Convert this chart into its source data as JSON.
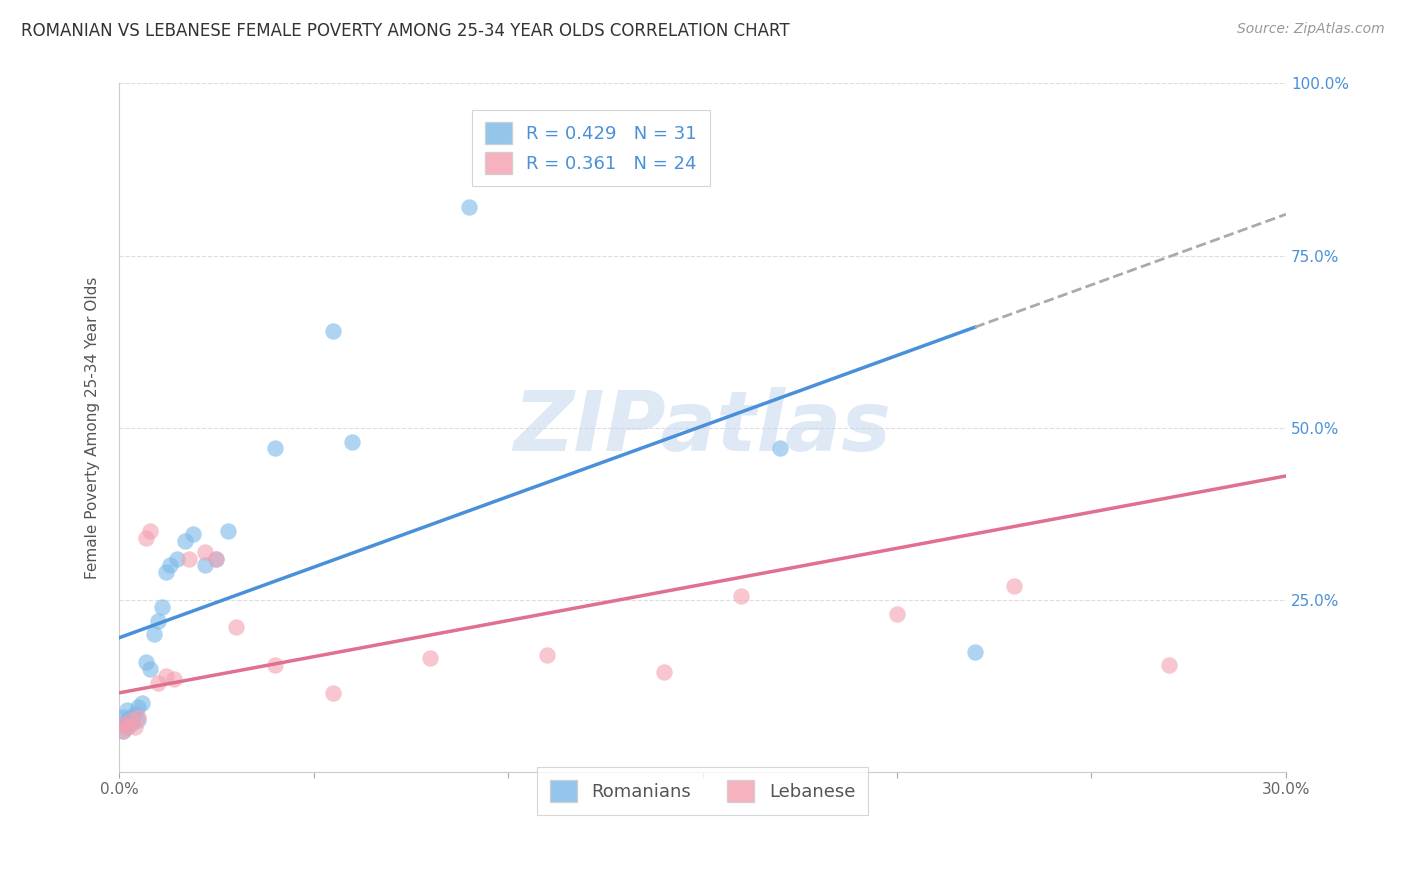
{
  "title": "ROMANIAN VS LEBANESE FEMALE POVERTY AMONG 25-34 YEAR OLDS CORRELATION CHART",
  "source": "Source: ZipAtlas.com",
  "ylabel": "Female Poverty Among 25-34 Year Olds",
  "xlim": [
    0.0,
    0.3
  ],
  "ylim": [
    0.0,
    1.0
  ],
  "xticks": [
    0.0,
    0.05,
    0.1,
    0.15,
    0.2,
    0.25,
    0.3
  ],
  "xticklabels": [
    "0.0%",
    "",
    "",
    "",
    "",
    "",
    "30.0%"
  ],
  "yticks": [
    0.0,
    0.25,
    0.5,
    0.75,
    1.0
  ],
  "right_yticklabels": [
    "",
    "25.0%",
    "50.0%",
    "75.0%",
    "100.0%"
  ],
  "romanian_R": 0.429,
  "romanian_N": 31,
  "lebanese_R": 0.361,
  "lebanese_N": 24,
  "romanian_color": "#7ab8e8",
  "lebanese_color": "#f4a0b0",
  "ro_line_color": "#4a90d9",
  "lb_line_color": "#e07090",
  "dash_color": "#aaaaaa",
  "ro_line_solid_end": 0.22,
  "ro_line_intercept": 0.195,
  "ro_line_slope": 2.05,
  "lb_line_intercept": 0.115,
  "lb_line_slope": 1.05,
  "romanian_x": [
    0.001,
    0.001,
    0.001,
    0.002,
    0.002,
    0.002,
    0.003,
    0.003,
    0.004,
    0.005,
    0.005,
    0.006,
    0.007,
    0.008,
    0.009,
    0.01,
    0.011,
    0.012,
    0.013,
    0.015,
    0.017,
    0.019,
    0.022,
    0.025,
    0.028,
    0.04,
    0.055,
    0.06,
    0.09,
    0.17,
    0.22
  ],
  "romanian_y": [
    0.06,
    0.07,
    0.08,
    0.065,
    0.075,
    0.09,
    0.07,
    0.08,
    0.085,
    0.075,
    0.095,
    0.1,
    0.16,
    0.15,
    0.2,
    0.22,
    0.24,
    0.29,
    0.3,
    0.31,
    0.335,
    0.345,
    0.3,
    0.31,
    0.35,
    0.47,
    0.64,
    0.48,
    0.82,
    0.47,
    0.175
  ],
  "lebanese_x": [
    0.001,
    0.001,
    0.002,
    0.003,
    0.004,
    0.005,
    0.007,
    0.008,
    0.01,
    0.012,
    0.014,
    0.018,
    0.022,
    0.025,
    0.03,
    0.04,
    0.055,
    0.08,
    0.11,
    0.14,
    0.16,
    0.2,
    0.23,
    0.27
  ],
  "lebanese_y": [
    0.06,
    0.07,
    0.065,
    0.075,
    0.065,
    0.08,
    0.34,
    0.35,
    0.13,
    0.14,
    0.135,
    0.31,
    0.32,
    0.31,
    0.21,
    0.155,
    0.115,
    0.165,
    0.17,
    0.145,
    0.255,
    0.23,
    0.27,
    0.155
  ],
  "watermark": "ZIPatlas",
  "watermark_color": "#c5d8ee",
  "background_color": "#ffffff",
  "grid_color": "#dddddd",
  "title_fontsize": 12,
  "axis_label_fontsize": 11,
  "tick_fontsize": 11,
  "legend_fontsize": 13,
  "right_tick_color": "#4a90d9"
}
